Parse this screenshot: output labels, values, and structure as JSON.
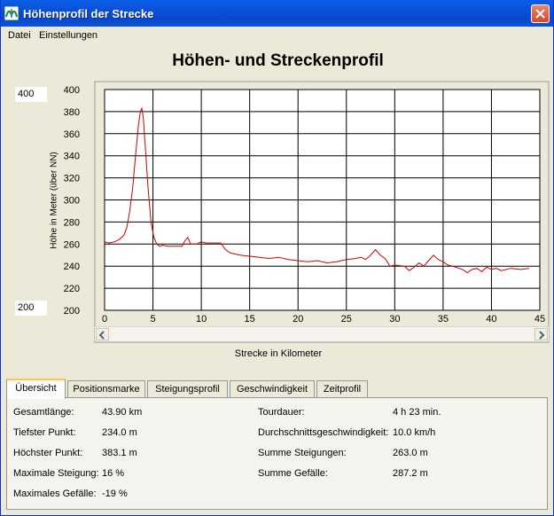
{
  "window": {
    "title": "Höhenprofil der Strecke",
    "icon": "route-profile-app-icon",
    "close_icon": "close-icon"
  },
  "menu": [
    "Datei",
    "Einstellungen"
  ],
  "chart": {
    "title": "Höhen- und Streckenprofil",
    "ylabel": "Höhe in Meter (über NN)",
    "xlabel": "Strecke in Kilometer",
    "y_max_box": "400",
    "y_min_box": "200"
  },
  "chart_data": {
    "type": "line",
    "title": "Höhen- und Streckenprofil",
    "xlabel": "Strecke in Kilometer",
    "ylabel": "Höhe in Meter (über NN)",
    "xlim": [
      0,
      45
    ],
    "ylim": [
      200,
      400
    ],
    "x_ticks": [
      "0",
      "5",
      "10",
      "15",
      "20",
      "25",
      "30",
      "35",
      "40",
      "45"
    ],
    "y_ticks": [
      "200",
      "220",
      "240",
      "260",
      "280",
      "300",
      "320",
      "340",
      "360",
      "380",
      "400"
    ],
    "grid": true,
    "line_color": "#CC0000",
    "series": [
      {
        "x": [
          0,
          0.5,
          1,
          1.5,
          2,
          2.3,
          2.6,
          2.9,
          3.2,
          3.5,
          3.7,
          3.85,
          4.0,
          4.2,
          4.5,
          4.8,
          5.1,
          5.4,
          5.7,
          6,
          6.5,
          7,
          8,
          8.3,
          8.6,
          8.9,
          9.5,
          10,
          10.5,
          11,
          12,
          12.5,
          13,
          14,
          15,
          16,
          17,
          18,
          19,
          20,
          21,
          22,
          23,
          24,
          25,
          26,
          26.5,
          27,
          27.5,
          28,
          28.5,
          29,
          29.5,
          30,
          31,
          31.5,
          32,
          32.5,
          33,
          33.5,
          34,
          34.5,
          35,
          35.5,
          36,
          37,
          37.5,
          38,
          38.5,
          39,
          39.5,
          40,
          40.5,
          41,
          42,
          43,
          43.9
        ],
        "y": [
          262,
          261,
          262,
          264,
          268,
          275,
          290,
          310,
          340,
          368,
          380,
          383,
          375,
          350,
          310,
          280,
          266,
          260,
          258,
          259,
          258,
          258,
          258,
          263,
          266,
          260,
          260,
          262,
          261,
          261,
          261,
          255,
          252,
          250,
          249,
          248,
          247,
          248,
          246,
          245,
          244,
          245,
          243,
          244,
          246,
          247,
          248,
          246,
          250,
          255,
          250,
          247,
          240,
          241,
          240,
          236,
          239,
          243,
          240,
          245,
          250,
          246,
          244,
          241,
          240,
          237,
          234,
          237,
          238,
          235,
          239,
          237,
          238,
          236,
          238,
          237,
          238
        ]
      }
    ]
  },
  "tabs": [
    "Übersicht",
    "Positionsmarke",
    "Steigungsprofil",
    "Geschwindigkeit",
    "Zeitprofil"
  ],
  "stats_left": [
    {
      "label": "Gesamtlänge:",
      "value": "43.90 km"
    },
    {
      "label": "Tiefster Punkt:",
      "value": "234.0 m"
    },
    {
      "label": "Höchster Punkt:",
      "value": "383.1 m"
    },
    {
      "label": "Maximale Steigung:",
      "value": "16 %"
    },
    {
      "label": "Maximales Gefälle:",
      "value": "-19 %"
    }
  ],
  "stats_right": [
    {
      "label": "Tourdauer:",
      "value": "4 h 23 min."
    },
    {
      "label": "Durchschnittsgeschwindigkeit:",
      "value": "10.0 km/h"
    },
    {
      "label": "Summe Steigungen:",
      "value": "263.0 m"
    },
    {
      "label": "Summe Gefälle:",
      "value": "287.2 m"
    }
  ]
}
